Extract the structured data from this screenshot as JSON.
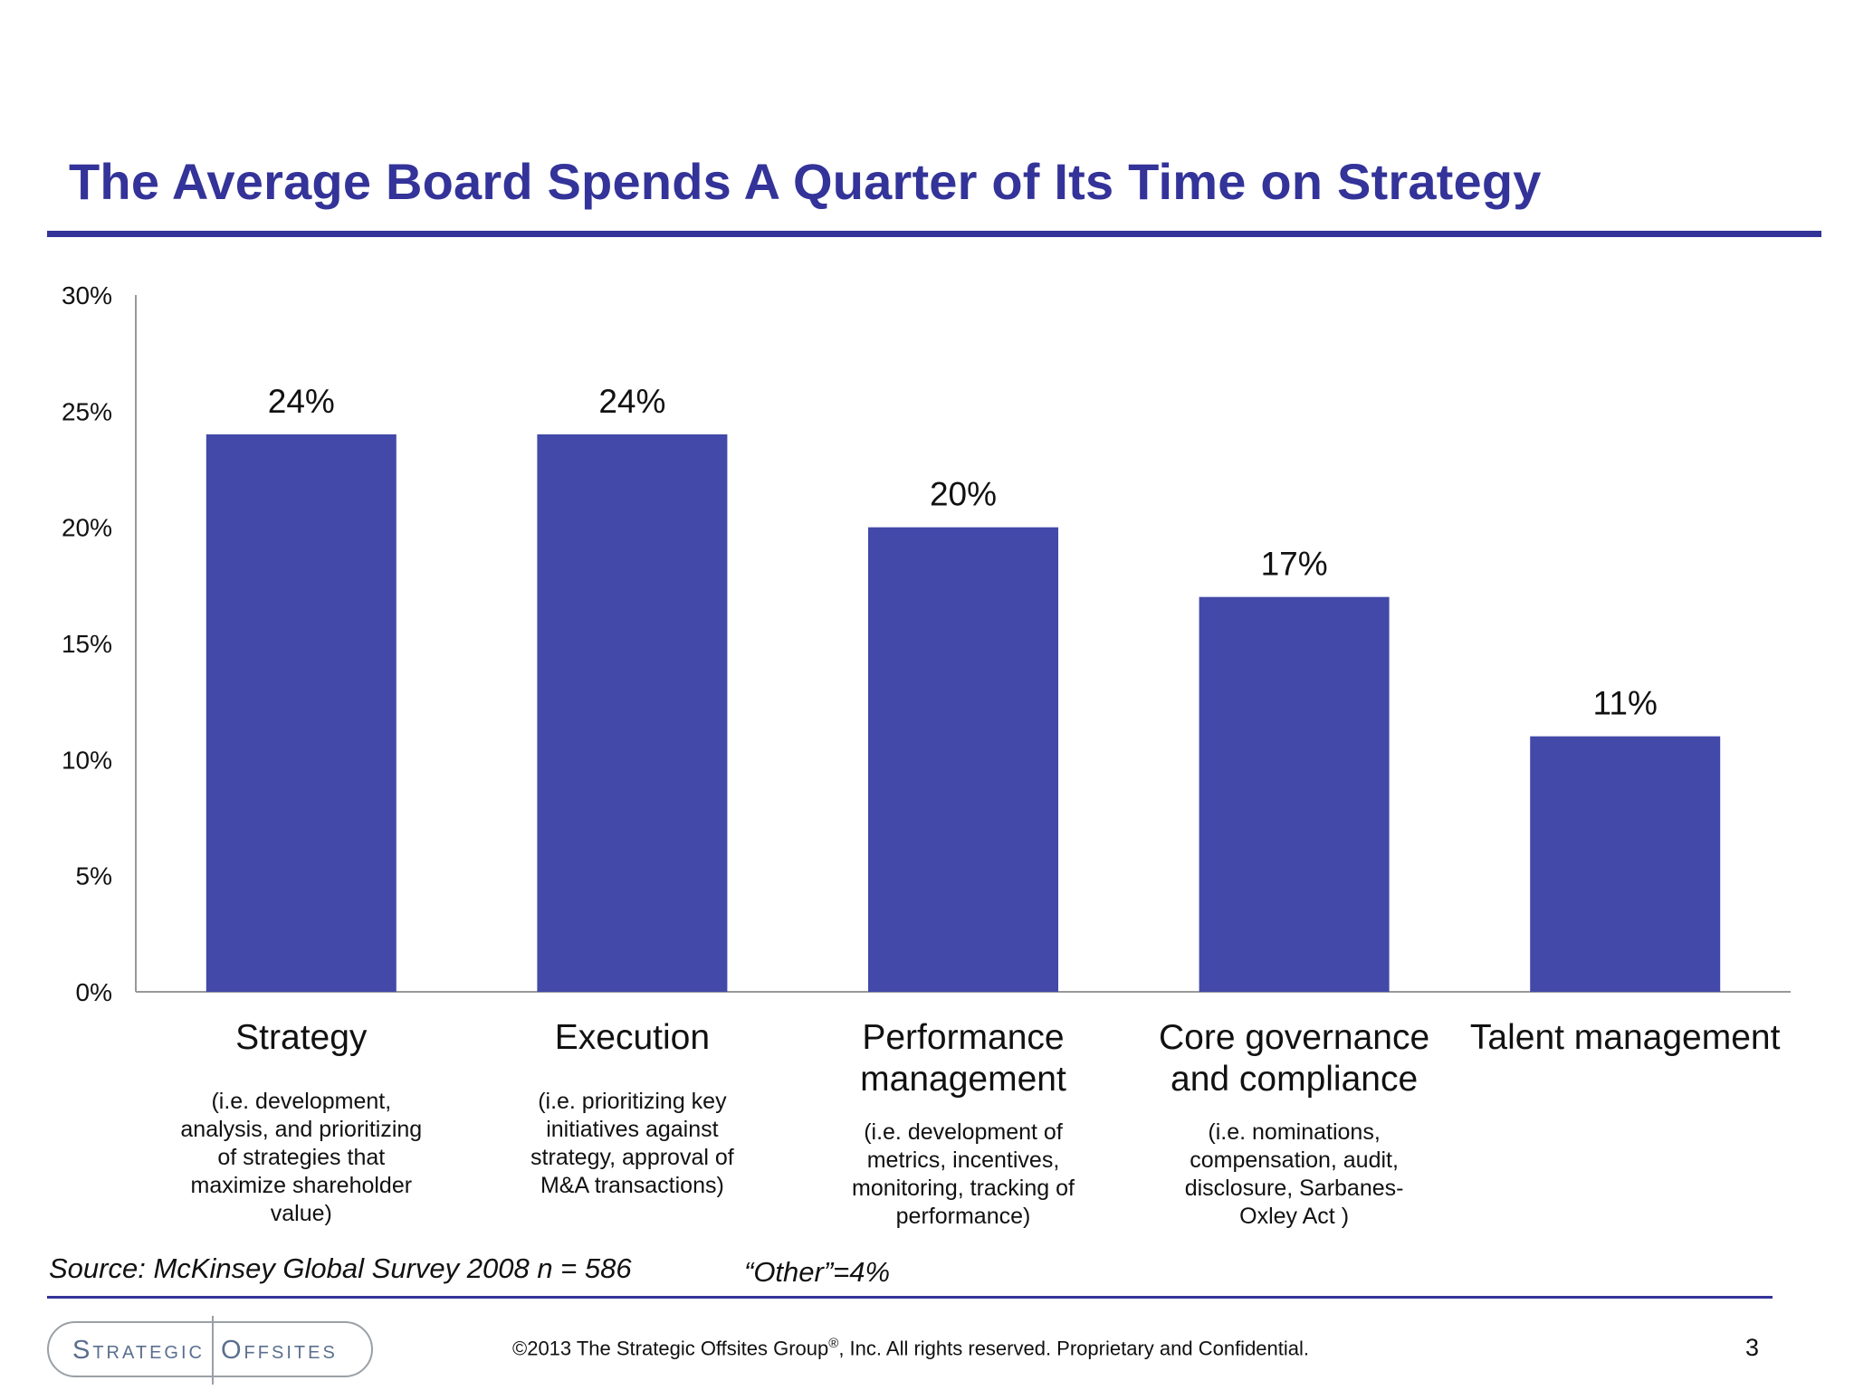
{
  "slide": {
    "title": "The Average Board Spends A Quarter of Its Time on Strategy",
    "source": "Source: McKinsey Global Survey 2008 n = 586",
    "other_note": "“Other”=4%",
    "copyright_pre": "©2013 The Strategic Offsites Group",
    "copyright_reg": "®",
    "copyright_post": ", Inc.  All rights reserved. Proprietary and Confidential.",
    "page_number": "3",
    "logo": {
      "left": "Strategic",
      "right": "Offsites"
    }
  },
  "chart_data": {
    "type": "bar",
    "categories": [
      "Strategy",
      "Execution",
      "Performance management",
      "Core governance and compliance",
      "Talent management"
    ],
    "category_lines": [
      [
        "Strategy"
      ],
      [
        "Execution"
      ],
      [
        "Performance",
        "management"
      ],
      [
        "Core governance",
        "and compliance"
      ],
      [
        "Talent management"
      ]
    ],
    "descriptions": [
      [
        "(i.e. development,",
        "analysis, and prioritizing",
        "of strategies that",
        "maximize shareholder",
        "value)"
      ],
      [
        "(i.e. prioritizing key",
        "initiatives against",
        "strategy, approval of",
        "M&A transactions)"
      ],
      [
        "(i.e. development of",
        "metrics, incentives,",
        "monitoring, tracking of",
        "performance)"
      ],
      [
        "(i.e. nominations,",
        "compensation, audit,",
        "disclosure, Sarbanes-",
        "Oxley Act )"
      ],
      []
    ],
    "values": [
      24,
      24,
      20,
      17,
      11
    ],
    "data_labels": [
      "24%",
      "24%",
      "20%",
      "17%",
      "11%"
    ],
    "ylim": [
      0,
      30
    ],
    "yticks": [
      0,
      5,
      10,
      15,
      20,
      25,
      30
    ],
    "ytick_labels": [
      "0%",
      "5%",
      "10%",
      "15%",
      "20%",
      "25%",
      "30%"
    ],
    "bar_color": "#4349a8",
    "axis_color": "#999999",
    "grid": false
  }
}
